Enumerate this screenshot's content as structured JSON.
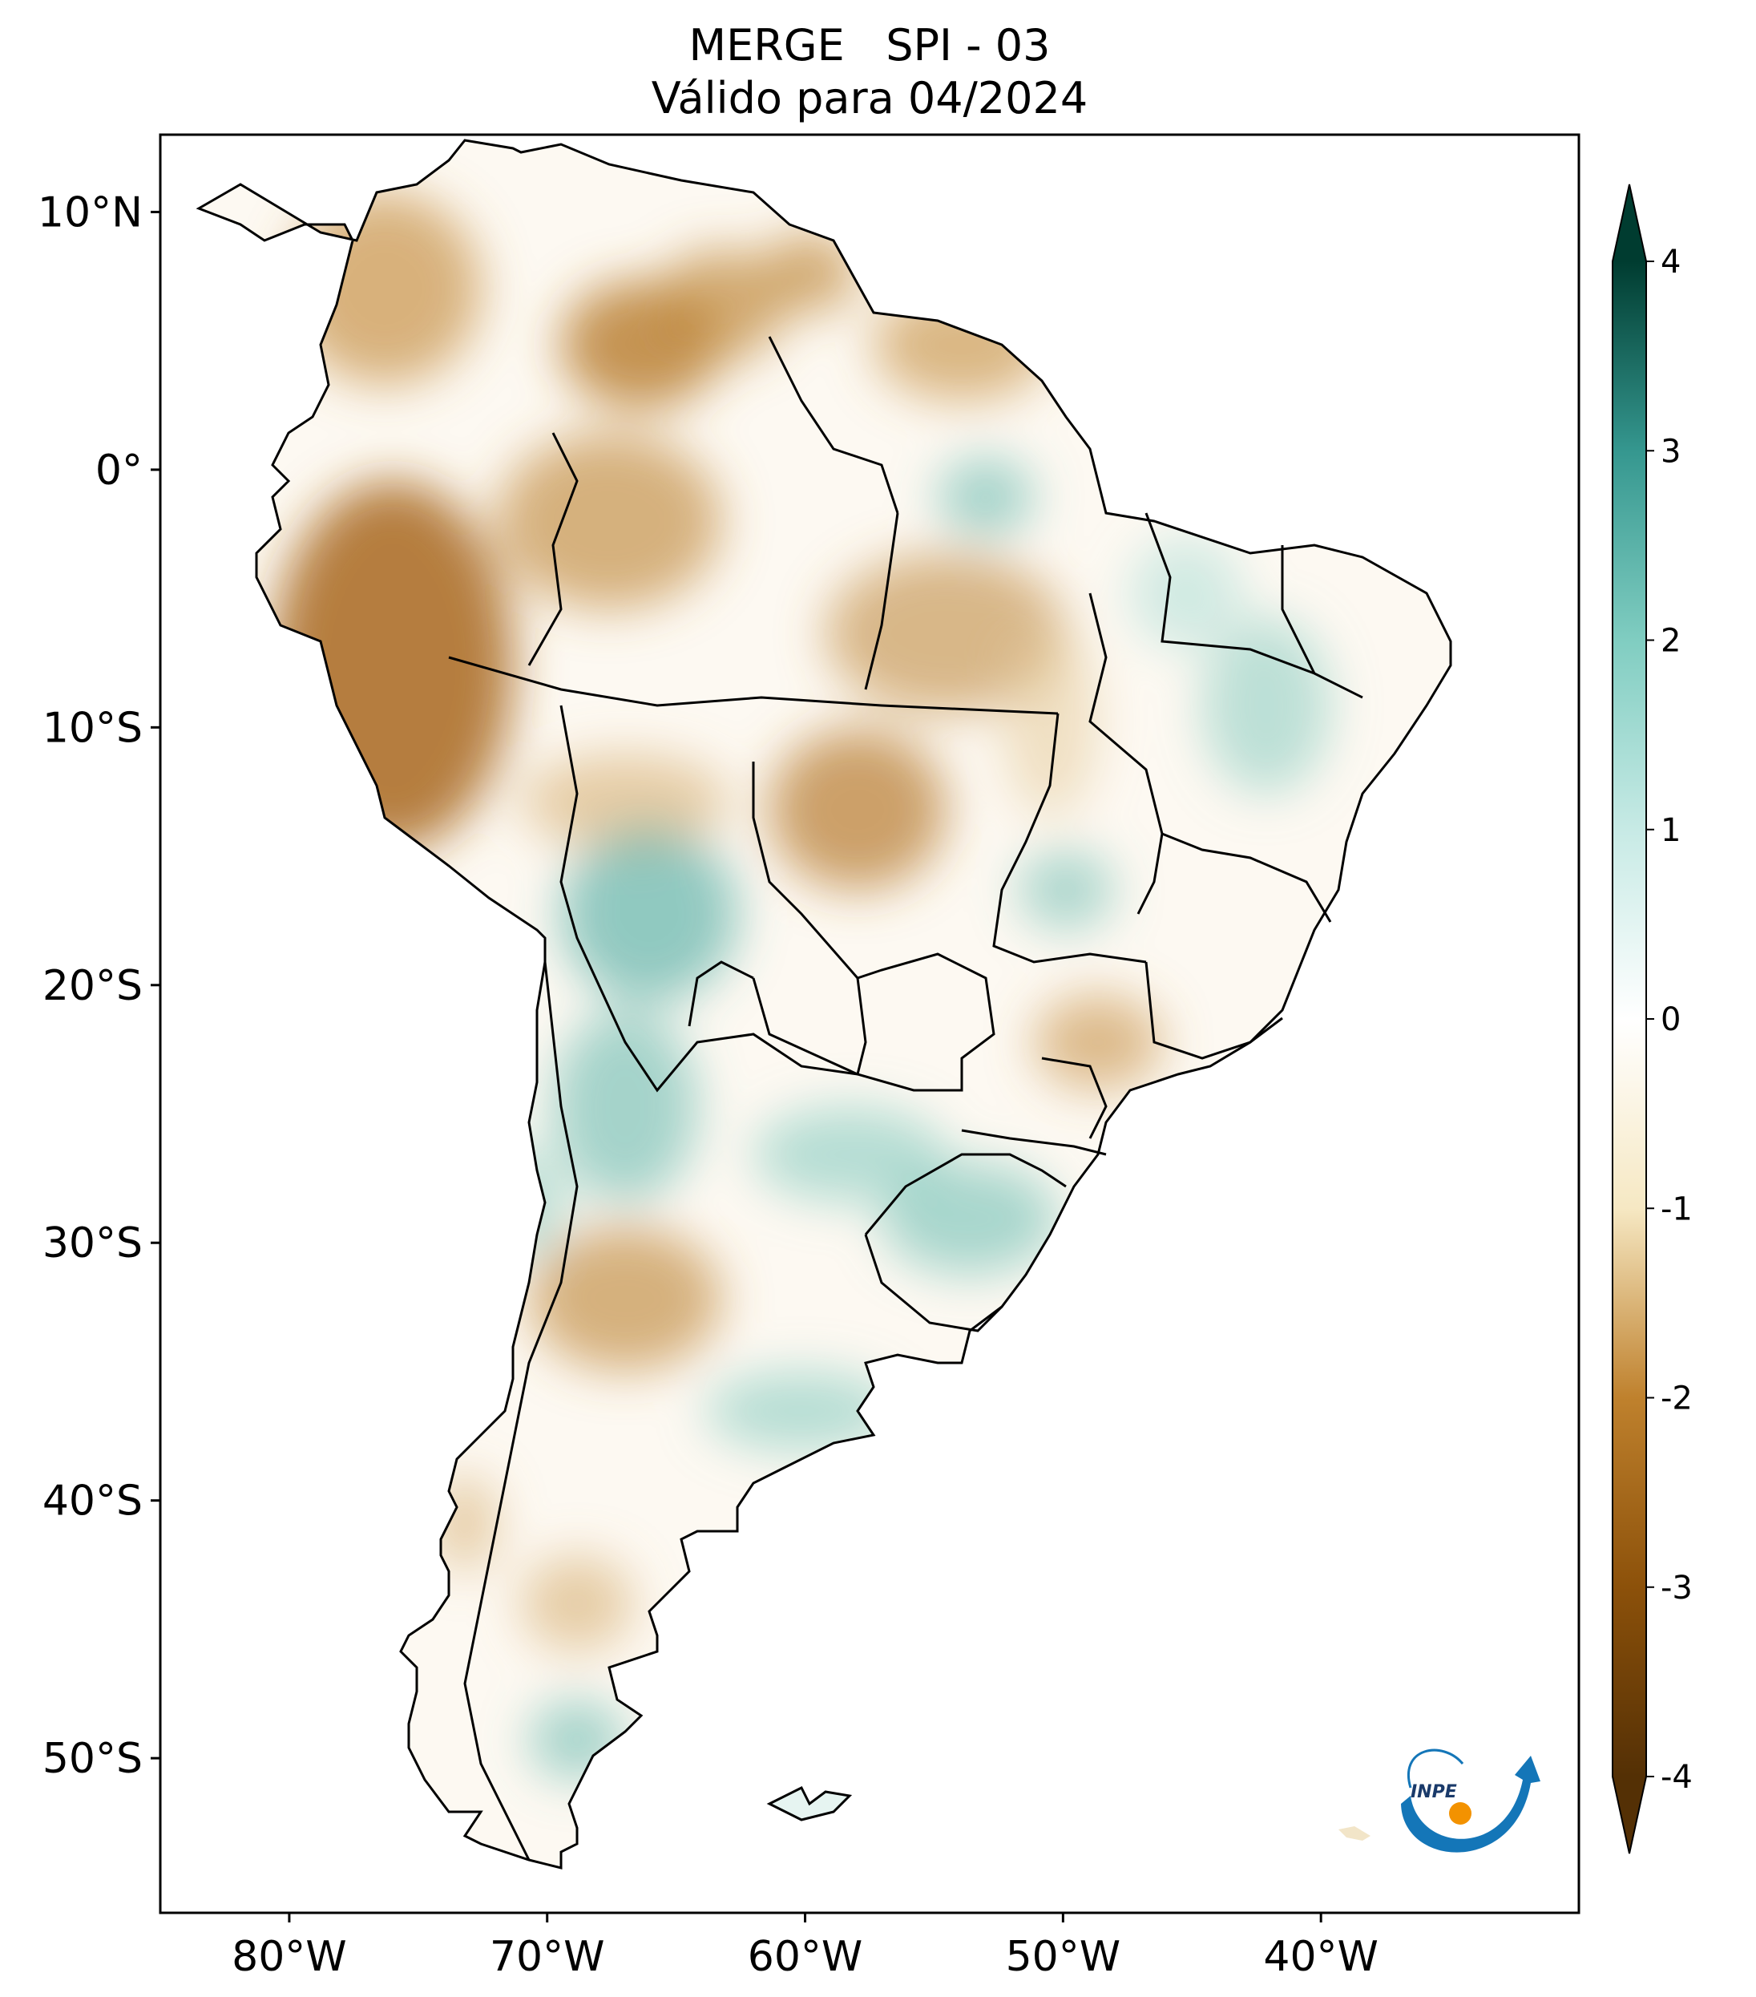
{
  "title": {
    "line1": "MERGE   SPI - 03",
    "line2": "Válido para 04/2024"
  },
  "map": {
    "lat_range": [
      -56,
      13
    ],
    "lon_range": [
      -85,
      -30
    ],
    "lat_ticks": [
      {
        "value": 10,
        "label": "10°N"
      },
      {
        "value": 0,
        "label": "0°"
      },
      {
        "value": -10,
        "label": "10°S"
      },
      {
        "value": -20,
        "label": "20°S"
      },
      {
        "value": -30,
        "label": "30°S"
      },
      {
        "value": -40,
        "label": "40°S"
      },
      {
        "value": -50,
        "label": "50°S"
      }
    ],
    "lon_ticks": [
      {
        "value": -80,
        "label": "80°W"
      },
      {
        "value": -70,
        "label": "70°W"
      },
      {
        "value": -60,
        "label": "60°W"
      },
      {
        "value": -50,
        "label": "50°W"
      },
      {
        "value": -40,
        "label": "40°W"
      }
    ]
  },
  "colorbar": {
    "min": -4,
    "max": 4,
    "ticks": [
      {
        "value": 4,
        "label": "4"
      },
      {
        "value": 3,
        "label": "3"
      },
      {
        "value": 2,
        "label": "2"
      },
      {
        "value": 1,
        "label": "1"
      },
      {
        "value": 0,
        "label": "0"
      },
      {
        "value": -1,
        "label": "-1"
      },
      {
        "value": -2,
        "label": "-2"
      },
      {
        "value": -3,
        "label": "-3"
      },
      {
        "value": -4,
        "label": "-4"
      }
    ],
    "colors": {
      "neg4": "#543005",
      "neg3": "#8c510a",
      "neg2": "#bf812d",
      "neg1": "#f6e8c3",
      "zero": "#ffffff",
      "pos1": "#c7eae5",
      "pos2": "#80cdc1",
      "pos3": "#35978f",
      "pos4": "#003c30"
    }
  },
  "logo": {
    "text": "INPE"
  }
}
